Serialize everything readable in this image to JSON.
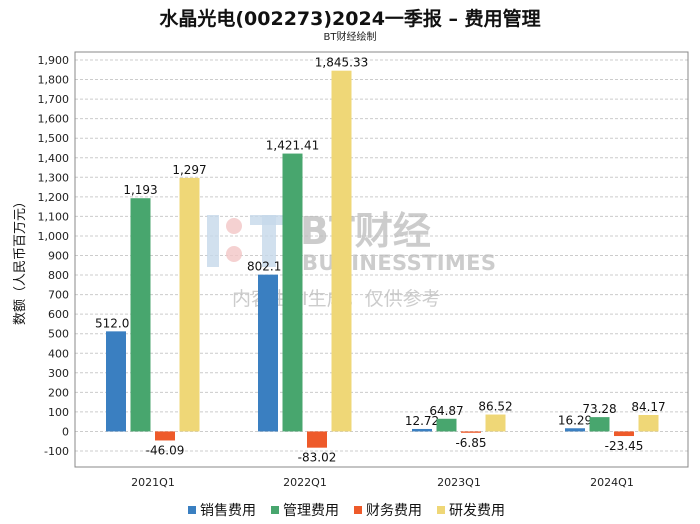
{
  "chart_data": {
    "type": "bar",
    "title": "水晶光电(002273)2024一季报 – 费用管理",
    "subtitle": "BT财经绘制",
    "ylabel": "数额（人民币百万元）",
    "xlabel": "",
    "ylim": [
      -100,
      1900
    ],
    "ytick_step": 100,
    "grid": true,
    "legend_position": "bottom",
    "categories": [
      "2021Q1",
      "2022Q1",
      "2023Q1",
      "2024Q1"
    ],
    "series": [
      {
        "name": "销售费用",
        "color": "#3a7fc1",
        "values": [
          512.01,
          802.11,
          12.72,
          16.29
        ],
        "labels": [
          "512.01",
          "802.11",
          "12.72",
          "16.29"
        ]
      },
      {
        "name": "管理费用",
        "color": "#48a66e",
        "values": [
          1193,
          1421.41,
          64.87,
          73.28
        ],
        "labels": [
          "1,193",
          "1,421.41",
          "64.87",
          "73.28"
        ]
      },
      {
        "name": "财务费用",
        "color": "#ee5a2a",
        "values": [
          -46.09,
          -83.02,
          -6.85,
          -23.45
        ],
        "labels": [
          "-46.09",
          "-83.02",
          "-6.85",
          "-23.45"
        ]
      },
      {
        "name": "研发费用",
        "color": "#efd777",
        "values": [
          1297,
          1845.33,
          86.52,
          84.17
        ],
        "labels": [
          "1,297",
          "1,845.33",
          "86.52",
          "84.17"
        ]
      }
    ],
    "watermark": {
      "brand": "BT财经",
      "brand_en": "BUSINESSTIMES",
      "note": "内容由AI生成，仅供参考"
    }
  }
}
